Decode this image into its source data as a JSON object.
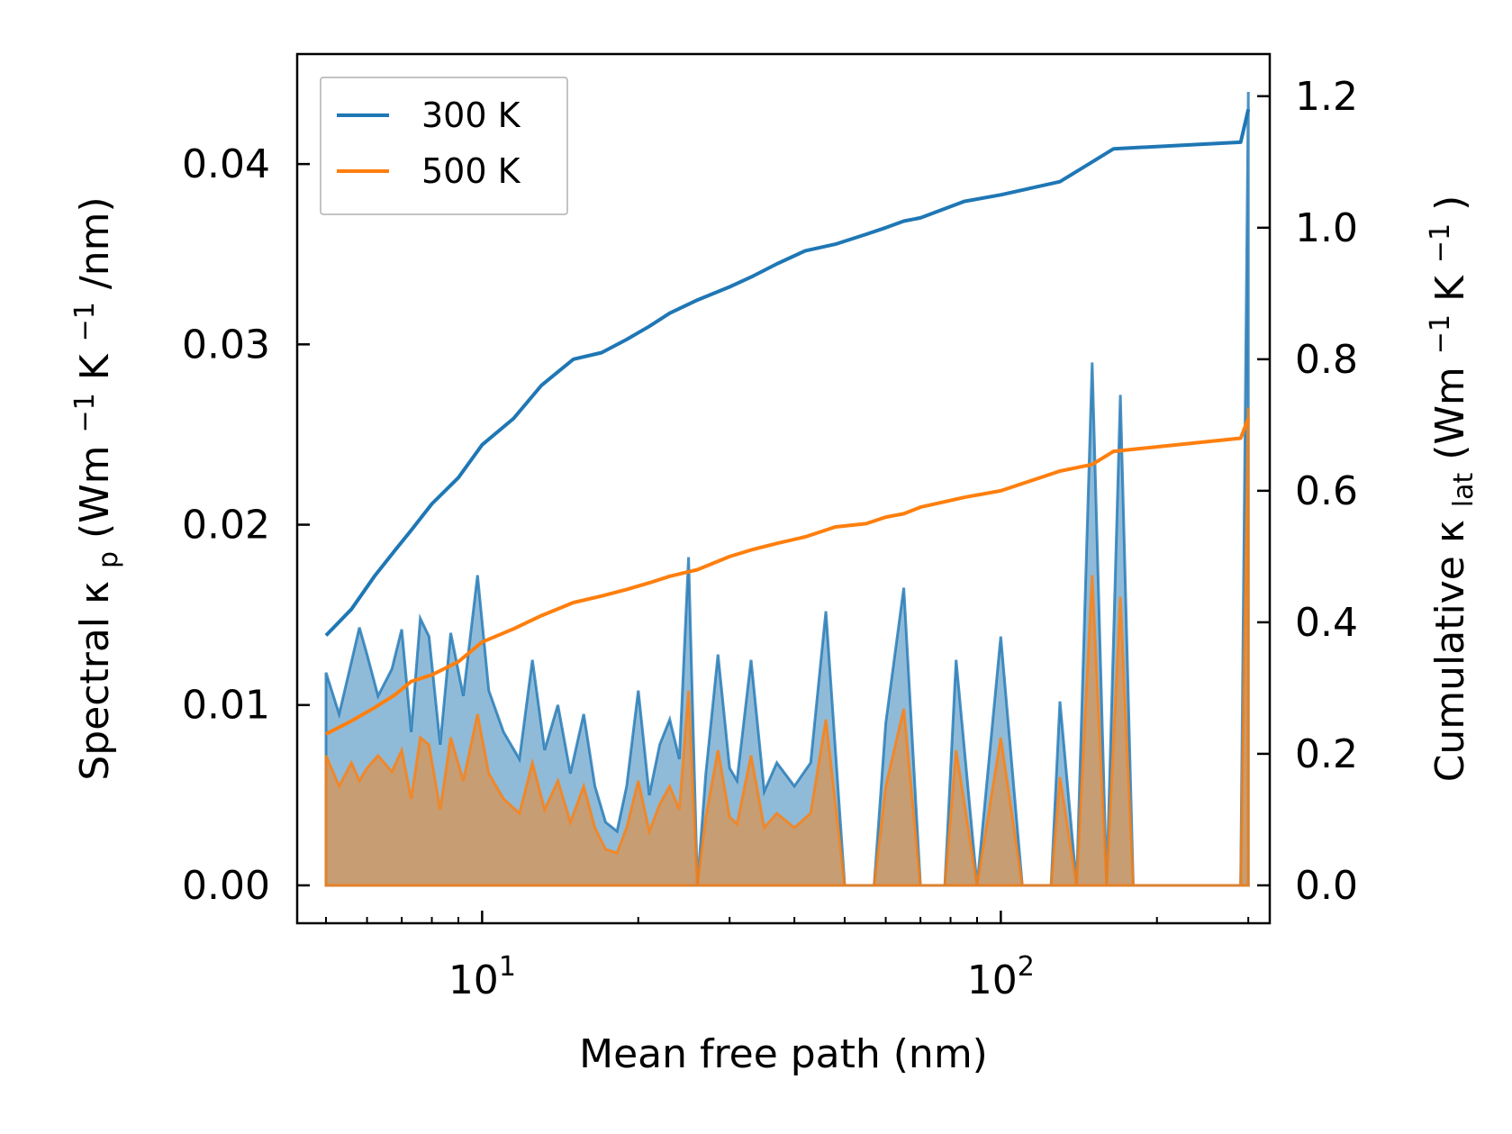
{
  "chart_data": {
    "type": "line",
    "title": "",
    "xlabel": "Mean free path (nm)",
    "ylabel_left": {
      "prefix": "Spectral κ",
      "sub": "p",
      "mid": " (Wm",
      "sup1": "−1",
      "mid2": "K",
      "sup2": "−1",
      "suffix": "/nm)"
    },
    "ylabel_right": {
      "prefix": "Cumulative κ",
      "sub": "lat",
      "mid": " (Wm",
      "sup1": "−1",
      "mid2": "K",
      "sup2": "−1",
      "suffix": ")"
    },
    "xscale": "log",
    "xlim": [
      4.4,
      330
    ],
    "ylim_left": [
      -0.0021,
      0.0461
    ],
    "ylim_right": [
      -0.0576,
      1.2641
    ],
    "x_ticks": [
      {
        "value": 10,
        "base": "10",
        "exp": "1"
      },
      {
        "value": 100,
        "base": "10",
        "exp": "2"
      }
    ],
    "y_left_ticks": [
      {
        "value": 0.0,
        "label": "0.00"
      },
      {
        "value": 0.01,
        "label": "0.01"
      },
      {
        "value": 0.02,
        "label": "0.02"
      },
      {
        "value": 0.03,
        "label": "0.03"
      },
      {
        "value": 0.04,
        "label": "0.04"
      }
    ],
    "y_right_ticks": [
      {
        "value": 0.0,
        "label": "0.0"
      },
      {
        "value": 0.2,
        "label": "0.2"
      },
      {
        "value": 0.4,
        "label": "0.4"
      },
      {
        "value": 0.6,
        "label": "0.6"
      },
      {
        "value": 0.8,
        "label": "0.8"
      },
      {
        "value": 1.0,
        "label": "1.0"
      },
      {
        "value": 1.2,
        "label": "1.2"
      }
    ],
    "legend": {
      "location": "upper-left",
      "entries": [
        "300 K",
        "500 K"
      ]
    },
    "series": [
      {
        "name": "300 K",
        "color": "#1f77b4",
        "fill_alpha": 0.5,
        "cumulative": [
          [
            5.0,
            0.38
          ],
          [
            5.6,
            0.42
          ],
          [
            6.2,
            0.47
          ],
          [
            6.8,
            0.51
          ],
          [
            7.3,
            0.54
          ],
          [
            8.0,
            0.58
          ],
          [
            9.0,
            0.62
          ],
          [
            10.0,
            0.67
          ],
          [
            11.5,
            0.71
          ],
          [
            13.0,
            0.76
          ],
          [
            15.0,
            0.8
          ],
          [
            17.0,
            0.81
          ],
          [
            19.0,
            0.83
          ],
          [
            21.0,
            0.85
          ],
          [
            23.0,
            0.87
          ],
          [
            26.0,
            0.89
          ],
          [
            30.0,
            0.91
          ],
          [
            33.0,
            0.925
          ],
          [
            37.0,
            0.945
          ],
          [
            42.0,
            0.965
          ],
          [
            48.0,
            0.975
          ],
          [
            55.0,
            0.99
          ],
          [
            60.0,
            1.0
          ],
          [
            65.0,
            1.01
          ],
          [
            70.0,
            1.015
          ],
          [
            85.0,
            1.04
          ],
          [
            100.0,
            1.05
          ],
          [
            130.0,
            1.07
          ],
          [
            150.0,
            1.1
          ],
          [
            165.0,
            1.12
          ],
          [
            290.0,
            1.13
          ],
          [
            300.0,
            1.18
          ]
        ],
        "spectral": [
          [
            5.0,
            0.0118
          ],
          [
            5.3,
            0.0095
          ],
          [
            5.6,
            0.0124
          ],
          [
            5.8,
            0.0143
          ],
          [
            6.0,
            0.0128
          ],
          [
            6.3,
            0.0105
          ],
          [
            6.7,
            0.012
          ],
          [
            7.0,
            0.0142
          ],
          [
            7.3,
            0.0085
          ],
          [
            7.6,
            0.0148
          ],
          [
            7.9,
            0.0138
          ],
          [
            8.3,
            0.0078
          ],
          [
            8.7,
            0.014
          ],
          [
            9.2,
            0.0105
          ],
          [
            9.8,
            0.0172
          ],
          [
            10.3,
            0.0108
          ],
          [
            11.0,
            0.0085
          ],
          [
            11.8,
            0.007
          ],
          [
            12.5,
            0.0125
          ],
          [
            13.2,
            0.0075
          ],
          [
            14.0,
            0.01
          ],
          [
            14.8,
            0.0062
          ],
          [
            15.7,
            0.0095
          ],
          [
            16.5,
            0.0055
          ],
          [
            17.3,
            0.0035
          ],
          [
            18.2,
            0.003
          ],
          [
            19.0,
            0.0055
          ],
          [
            20.0,
            0.0108
          ],
          [
            21.0,
            0.005
          ],
          [
            22.0,
            0.0078
          ],
          [
            23.0,
            0.0092
          ],
          [
            24.0,
            0.007
          ],
          [
            25.0,
            0.0182
          ],
          [
            26.0,
            0.0
          ],
          [
            27.0,
            0.0062
          ],
          [
            28.5,
            0.0128
          ],
          [
            30.0,
            0.0065
          ],
          [
            31.0,
            0.0058
          ],
          [
            33.0,
            0.0125
          ],
          [
            35.0,
            0.0052
          ],
          [
            37.0,
            0.0068
          ],
          [
            40.0,
            0.0055
          ],
          [
            43.0,
            0.0068
          ],
          [
            46.0,
            0.0152
          ],
          [
            50.0,
            0.0
          ],
          [
            57.0,
            0.0
          ],
          [
            60.0,
            0.009
          ],
          [
            65.0,
            0.0165
          ],
          [
            70.0,
            0.0
          ],
          [
            78.0,
            0.0
          ],
          [
            82.0,
            0.0125
          ],
          [
            90.0,
            0.0
          ],
          [
            100.0,
            0.0138
          ],
          [
            110.0,
            0.0
          ],
          [
            125.0,
            0.0
          ],
          [
            130.0,
            0.0102
          ],
          [
            140.0,
            0.0
          ],
          [
            150.0,
            0.029
          ],
          [
            160.0,
            0.0
          ],
          [
            170.0,
            0.0272
          ],
          [
            180.0,
            0.0
          ],
          [
            290.0,
            0.0
          ],
          [
            300.0,
            0.044
          ]
        ]
      },
      {
        "name": "500 K",
        "color": "#ff7f0e",
        "fill_alpha": 0.5,
        "cumulative": [
          [
            5.0,
            0.23
          ],
          [
            5.6,
            0.25
          ],
          [
            6.2,
            0.27
          ],
          [
            6.8,
            0.29
          ],
          [
            7.3,
            0.31
          ],
          [
            8.0,
            0.32
          ],
          [
            9.0,
            0.34
          ],
          [
            10.0,
            0.37
          ],
          [
            11.5,
            0.39
          ],
          [
            13.0,
            0.41
          ],
          [
            15.0,
            0.43
          ],
          [
            17.0,
            0.44
          ],
          [
            19.0,
            0.45
          ],
          [
            21.0,
            0.46
          ],
          [
            23.0,
            0.47
          ],
          [
            26.0,
            0.48
          ],
          [
            30.0,
            0.5
          ],
          [
            33.0,
            0.51
          ],
          [
            37.0,
            0.52
          ],
          [
            42.0,
            0.53
          ],
          [
            48.0,
            0.545
          ],
          [
            55.0,
            0.55
          ],
          [
            60.0,
            0.56
          ],
          [
            65.0,
            0.565
          ],
          [
            70.0,
            0.575
          ],
          [
            85.0,
            0.59
          ],
          [
            100.0,
            0.6
          ],
          [
            130.0,
            0.63
          ],
          [
            150.0,
            0.64
          ],
          [
            165.0,
            0.66
          ],
          [
            290.0,
            0.68
          ],
          [
            300.0,
            0.71
          ]
        ],
        "spectral": [
          [
            5.0,
            0.0072
          ],
          [
            5.3,
            0.0055
          ],
          [
            5.6,
            0.0068
          ],
          [
            5.8,
            0.0058
          ],
          [
            6.0,
            0.0065
          ],
          [
            6.3,
            0.0072
          ],
          [
            6.7,
            0.0063
          ],
          [
            7.0,
            0.0075
          ],
          [
            7.3,
            0.0048
          ],
          [
            7.6,
            0.0082
          ],
          [
            7.9,
            0.0078
          ],
          [
            8.3,
            0.0042
          ],
          [
            8.7,
            0.0082
          ],
          [
            9.2,
            0.0058
          ],
          [
            9.8,
            0.0095
          ],
          [
            10.3,
            0.0062
          ],
          [
            11.0,
            0.0048
          ],
          [
            11.8,
            0.004
          ],
          [
            12.5,
            0.0068
          ],
          [
            13.2,
            0.0042
          ],
          [
            14.0,
            0.0058
          ],
          [
            14.8,
            0.0035
          ],
          [
            15.7,
            0.0055
          ],
          [
            16.5,
            0.0032
          ],
          [
            17.3,
            0.002
          ],
          [
            18.2,
            0.0018
          ],
          [
            19.0,
            0.0032
          ],
          [
            20.0,
            0.0058
          ],
          [
            21.0,
            0.003
          ],
          [
            22.0,
            0.0045
          ],
          [
            23.0,
            0.0055
          ],
          [
            24.0,
            0.0042
          ],
          [
            25.0,
            0.0108
          ],
          [
            26.0,
            0.0
          ],
          [
            27.0,
            0.0038
          ],
          [
            28.5,
            0.0075
          ],
          [
            30.0,
            0.0038
          ],
          [
            31.0,
            0.0034
          ],
          [
            33.0,
            0.0072
          ],
          [
            35.0,
            0.0032
          ],
          [
            37.0,
            0.004
          ],
          [
            40.0,
            0.0032
          ],
          [
            43.0,
            0.004
          ],
          [
            46.0,
            0.0092
          ],
          [
            50.0,
            0.0
          ],
          [
            57.0,
            0.0
          ],
          [
            60.0,
            0.0055
          ],
          [
            65.0,
            0.0098
          ],
          [
            70.0,
            0.0
          ],
          [
            78.0,
            0.0
          ],
          [
            82.0,
            0.0075
          ],
          [
            90.0,
            0.0
          ],
          [
            100.0,
            0.0082
          ],
          [
            110.0,
            0.0
          ],
          [
            125.0,
            0.0
          ],
          [
            130.0,
            0.006
          ],
          [
            140.0,
            0.0
          ],
          [
            150.0,
            0.0172
          ],
          [
            160.0,
            0.0
          ],
          [
            170.0,
            0.016
          ],
          [
            180.0,
            0.0
          ],
          [
            290.0,
            0.0
          ],
          [
            300.0,
            0.0265
          ]
        ]
      }
    ]
  }
}
